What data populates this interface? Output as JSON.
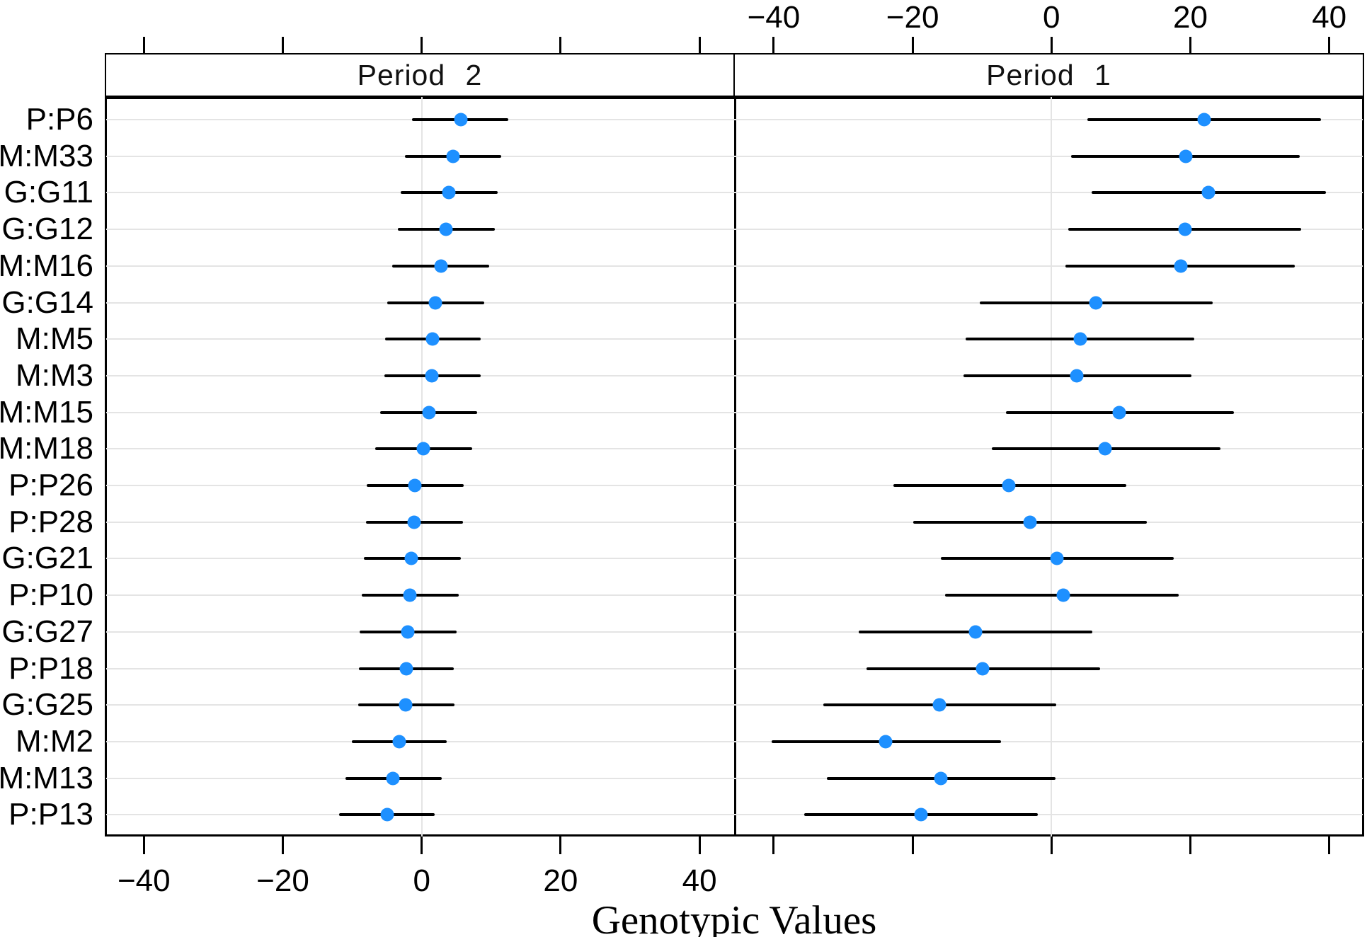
{
  "chart_data": {
    "type": "dotplot",
    "xlabel": "Genotypic Values",
    "x_tick_values": [
      -40,
      -20,
      0,
      20,
      40
    ],
    "x_tick_labels": [
      "−40",
      "−20",
      "0",
      "20",
      "40"
    ],
    "xlim": [
      -45.6,
      45.1
    ],
    "grid": "horizontal rules per category + light vertical rule at 0 in each panel",
    "legend_position": "none",
    "dot_color": "#1E90FF",
    "ci_color": "#000000",
    "categories_top_to_bottom": [
      "P:P6",
      "M:M33",
      "G:G11",
      "G:G12",
      "M:M16",
      "G:G14",
      "M:M5",
      "M:M3",
      "M:M15",
      "M:M18",
      "P:P26",
      "P:P28",
      "G:G21",
      "P:P10",
      "G:G27",
      "P:P18",
      "G:G25",
      "M:M2",
      "M:M13",
      "P:P13"
    ],
    "panels": [
      {
        "label": "Period 2",
        "side": "left",
        "axis_labels_shown": "bottom",
        "series": {
          "dots": [
            5.6,
            4.5,
            3.9,
            3.5,
            2.8,
            2.0,
            1.6,
            1.5,
            1.0,
            0.2,
            -1.0,
            -1.1,
            -1.5,
            -1.7,
            -2.0,
            -2.2,
            -2.3,
            -3.2,
            -4.1,
            -5.0
          ],
          "ci_low": [
            -1.4,
            -2.4,
            -3.0,
            -3.4,
            -4.2,
            -5.0,
            -5.3,
            -5.4,
            -6.0,
            -6.7,
            -7.9,
            -8.0,
            -8.3,
            -8.6,
            -8.9,
            -9.0,
            -9.1,
            -10.1,
            -11.0,
            -11.9
          ],
          "ci_high": [
            12.5,
            11.4,
            10.9,
            10.5,
            9.7,
            9.0,
            8.5,
            8.5,
            8.0,
            7.3,
            6.0,
            5.9,
            5.6,
            5.3,
            5.0,
            4.6,
            4.7,
            3.6,
            2.9,
            1.9
          ]
        }
      },
      {
        "label": "Period 1",
        "side": "right",
        "axis_labels_shown": "top",
        "series": {
          "dots": [
            22.0,
            19.3,
            22.6,
            19.2,
            18.6,
            6.4,
            4.1,
            3.6,
            9.8,
            7.7,
            -6.1,
            -3.1,
            0.8,
            1.7,
            -10.9,
            -9.9,
            -16.1,
            -23.9,
            -15.9,
            -18.8
          ],
          "ci_low": [
            5.2,
            2.8,
            5.8,
            2.4,
            2.0,
            -10.3,
            -12.4,
            -12.7,
            -6.6,
            -8.6,
            -22.8,
            -19.9,
            -15.9,
            -15.3,
            -27.8,
            -26.6,
            -32.9,
            -40.3,
            -32.3,
            -35.6
          ],
          "ci_high": [
            38.8,
            35.8,
            39.5,
            36.0,
            35.0,
            23.2,
            20.6,
            20.2,
            26.3,
            24.3,
            10.8,
            13.7,
            17.6,
            18.3,
            5.9,
            7.0,
            0.7,
            -7.3,
            0.6,
            -2.0
          ]
        }
      }
    ]
  }
}
